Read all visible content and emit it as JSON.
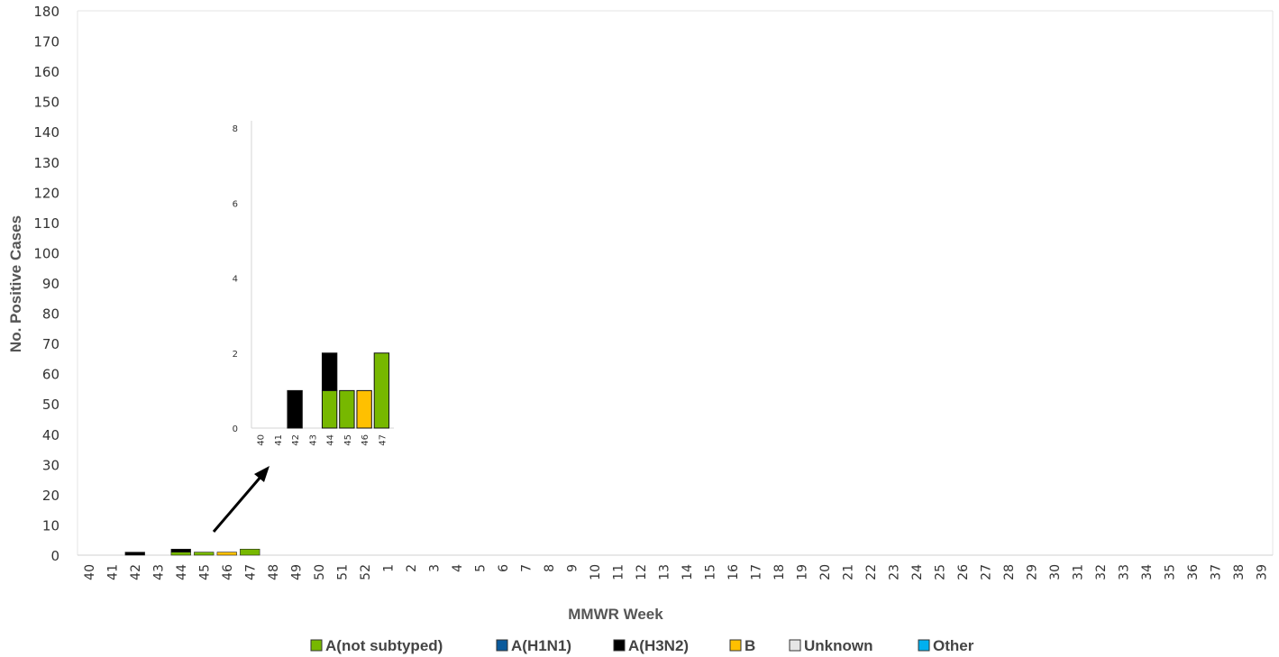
{
  "chart_data": [
    {
      "type": "bar",
      "stacked": true,
      "xlabel": "MMWR Week",
      "ylabel": "No. Positive Cases",
      "ylim": [
        0,
        180
      ],
      "y_ticks": [
        "0",
        "10",
        "20",
        "30",
        "40",
        "50",
        "60",
        "70",
        "80",
        "90",
        "100",
        "110",
        "120",
        "130",
        "140",
        "150",
        "160",
        "170",
        "180"
      ],
      "categories": [
        "40",
        "41",
        "42",
        "43",
        "44",
        "45",
        "46",
        "47",
        "48",
        "49",
        "50",
        "51",
        "52",
        "1",
        "2",
        "3",
        "4",
        "5",
        "6",
        "7",
        "8",
        "9",
        "10",
        "11",
        "12",
        "13",
        "14",
        "15",
        "16",
        "17",
        "18",
        "19",
        "20",
        "21",
        "22",
        "23",
        "24",
        "25",
        "26",
        "27",
        "28",
        "29",
        "30",
        "31",
        "32",
        "33",
        "34",
        "35",
        "36",
        "37",
        "38",
        "39"
      ],
      "series": [
        {
          "name": "A(not subtyped)",
          "color": "#77b800",
          "values": [
            0,
            0,
            0,
            0,
            1,
            1,
            0,
            2,
            0,
            0,
            0,
            0,
            0,
            0,
            0,
            0,
            0,
            0,
            0,
            0,
            0,
            0,
            0,
            0,
            0,
            0,
            0,
            0,
            0,
            0,
            0,
            0,
            0,
            0,
            0,
            0,
            0,
            0,
            0,
            0,
            0,
            0,
            0,
            0,
            0,
            0,
            0,
            0,
            0,
            0,
            0,
            0
          ]
        },
        {
          "name": "A(H1N1)",
          "color": "#0a5a9c",
          "values": [
            0,
            0,
            0,
            0,
            0,
            0,
            0,
            0,
            0,
            0,
            0,
            0,
            0,
            0,
            0,
            0,
            0,
            0,
            0,
            0,
            0,
            0,
            0,
            0,
            0,
            0,
            0,
            0,
            0,
            0,
            0,
            0,
            0,
            0,
            0,
            0,
            0,
            0,
            0,
            0,
            0,
            0,
            0,
            0,
            0,
            0,
            0,
            0,
            0,
            0,
            0,
            0
          ]
        },
        {
          "name": "A(H3N2)",
          "color": "#000000",
          "values": [
            0,
            0,
            1,
            0,
            1,
            0,
            0,
            0,
            0,
            0,
            0,
            0,
            0,
            0,
            0,
            0,
            0,
            0,
            0,
            0,
            0,
            0,
            0,
            0,
            0,
            0,
            0,
            0,
            0,
            0,
            0,
            0,
            0,
            0,
            0,
            0,
            0,
            0,
            0,
            0,
            0,
            0,
            0,
            0,
            0,
            0,
            0,
            0,
            0,
            0,
            0,
            0
          ]
        },
        {
          "name": "B",
          "color": "#ffc000",
          "values": [
            0,
            0,
            0,
            0,
            0,
            0,
            1,
            0,
            0,
            0,
            0,
            0,
            0,
            0,
            0,
            0,
            0,
            0,
            0,
            0,
            0,
            0,
            0,
            0,
            0,
            0,
            0,
            0,
            0,
            0,
            0,
            0,
            0,
            0,
            0,
            0,
            0,
            0,
            0,
            0,
            0,
            0,
            0,
            0,
            0,
            0,
            0,
            0,
            0,
            0,
            0,
            0
          ]
        },
        {
          "name": "Unknown",
          "color": "#e6e6e6",
          "values": [
            0,
            0,
            0,
            0,
            0,
            0,
            0,
            0,
            0,
            0,
            0,
            0,
            0,
            0,
            0,
            0,
            0,
            0,
            0,
            0,
            0,
            0,
            0,
            0,
            0,
            0,
            0,
            0,
            0,
            0,
            0,
            0,
            0,
            0,
            0,
            0,
            0,
            0,
            0,
            0,
            0,
            0,
            0,
            0,
            0,
            0,
            0,
            0,
            0,
            0,
            0,
            0
          ]
        },
        {
          "name": "Other",
          "color": "#00b0f0",
          "values": [
            0,
            0,
            0,
            0,
            0,
            0,
            0,
            0,
            0,
            0,
            0,
            0,
            0,
            0,
            0,
            0,
            0,
            0,
            0,
            0,
            0,
            0,
            0,
            0,
            0,
            0,
            0,
            0,
            0,
            0,
            0,
            0,
            0,
            0,
            0,
            0,
            0,
            0,
            0,
            0,
            0,
            0,
            0,
            0,
            0,
            0,
            0,
            0,
            0,
            0,
            0,
            0
          ]
        }
      ],
      "legend": "bottom",
      "grid": false
    },
    {
      "type": "bar",
      "stacked": true,
      "role": "inset-zoom",
      "xlabel": "",
      "ylabel": "",
      "ylim": [
        0,
        8
      ],
      "y_ticks": [
        "0",
        "2",
        "4",
        "6",
        "8"
      ],
      "categories": [
        "40",
        "41",
        "42",
        "43",
        "44",
        "45",
        "46",
        "47"
      ],
      "series": [
        {
          "name": "A(not subtyped)",
          "color": "#77b800",
          "values": [
            0,
            0,
            0,
            0,
            1,
            1,
            0,
            2
          ]
        },
        {
          "name": "A(H3N2)",
          "color": "#000000",
          "values": [
            0,
            0,
            1,
            0,
            1,
            0,
            0,
            0
          ]
        },
        {
          "name": "B",
          "color": "#ffc000",
          "values": [
            0,
            0,
            0,
            0,
            0,
            0,
            1,
            0
          ]
        }
      ]
    }
  ]
}
